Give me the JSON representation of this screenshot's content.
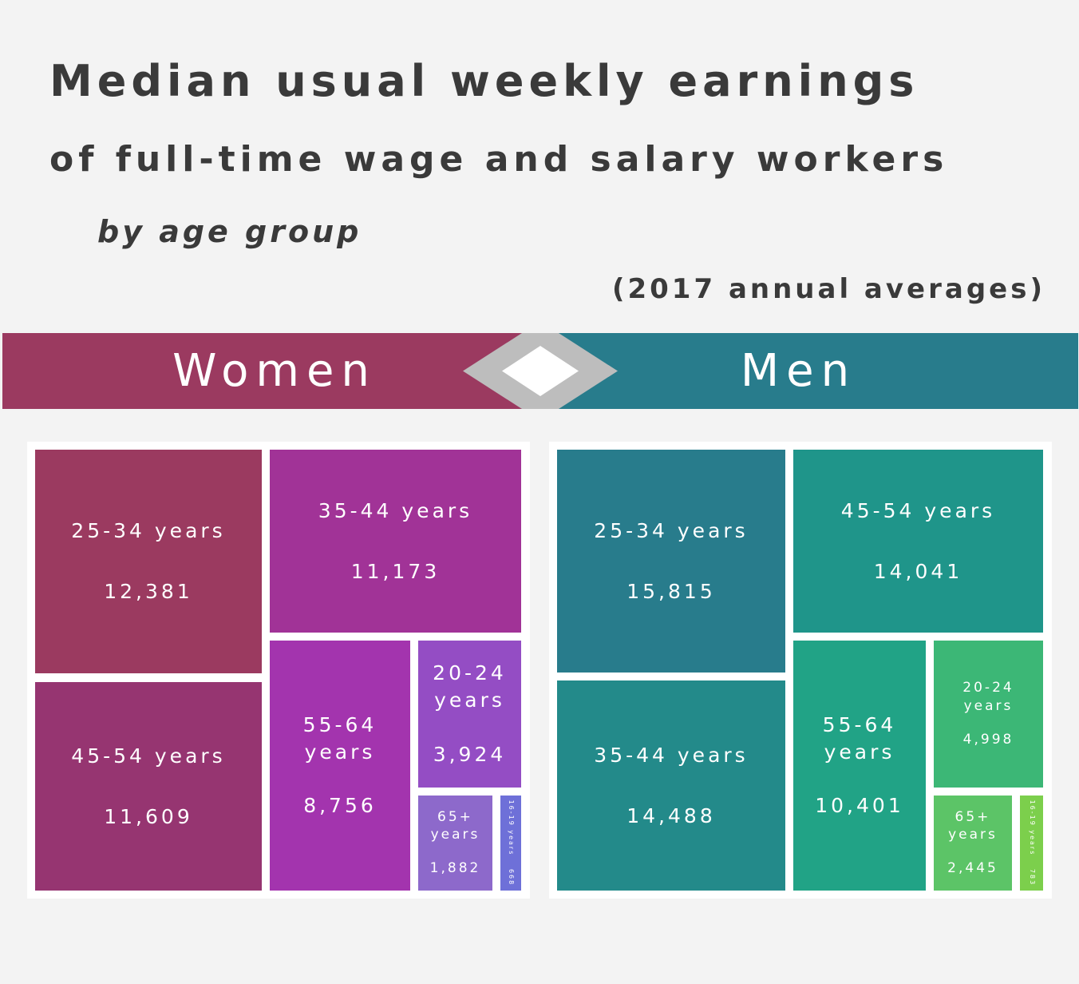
{
  "title": {
    "line1": "Median usual weekly earnings",
    "line2": "of full-time wage and salary workers",
    "line3": "by age group",
    "subtitle": "(2017 annual averages)"
  },
  "women": {
    "label": "Women",
    "color": "#9b3a60",
    "tiles": {
      "a25_34": {
        "label": "25-34 years",
        "value": "12,381",
        "color": "#9b3a60"
      },
      "a45_54": {
        "label": "45-54 years",
        "value": "11,609",
        "color": "#963571"
      },
      "a35_44": {
        "label": "35-44 years",
        "value": "11,173",
        "color": "#a13397"
      },
      "a55_64": {
        "label": "55-64 years",
        "value": "8,756",
        "color": "#a334ae"
      },
      "a20_24": {
        "label": "20-24 years",
        "value": "3,924",
        "color": "#944dc4"
      },
      "a65": {
        "label": "65+ years",
        "value": "1,882",
        "color": "#8d69cb"
      },
      "a16_19": {
        "label": "16-19 years",
        "value": "668",
        "color": "#6e70d8"
      }
    }
  },
  "men": {
    "label": "Men",
    "color": "#287c8c",
    "tiles": {
      "a25_34": {
        "label": "25-34 years",
        "value": "15,815",
        "color": "#287c8c"
      },
      "a35_44": {
        "label": "35-44 years",
        "value": "14,488",
        "color": "#238a8a"
      },
      "a45_54": {
        "label": "45-54 years",
        "value": "14,041",
        "color": "#1f958a"
      },
      "a55_64": {
        "label": "55-64 years",
        "value": "10,401",
        "color": "#21a386"
      },
      "a20_24": {
        "label": "20-24 years",
        "value": "4,998",
        "color": "#3cb776"
      },
      "a65": {
        "label": "65+ years",
        "value": "2,445",
        "color": "#5cc467"
      },
      "a16_19": {
        "label": "16-19 years",
        "value": "783",
        "color": "#7ccf4c"
      }
    }
  },
  "chart_data": [
    {
      "type": "treemap",
      "group": "Women",
      "categories": [
        "25-34 years",
        "45-54 years",
        "35-44 years",
        "55-64 years",
        "20-24 years",
        "65+ years",
        "16-19 years"
      ],
      "values": [
        12381,
        11609,
        11173,
        8756,
        3924,
        1882,
        668
      ]
    },
    {
      "type": "treemap",
      "group": "Men",
      "categories": [
        "25-34 years",
        "35-44 years",
        "45-54 years",
        "55-64 years",
        "20-24 years",
        "65+ years",
        "16-19 years"
      ],
      "values": [
        15815,
        14488,
        14041,
        10401,
        4998,
        2445,
        783
      ]
    }
  ]
}
